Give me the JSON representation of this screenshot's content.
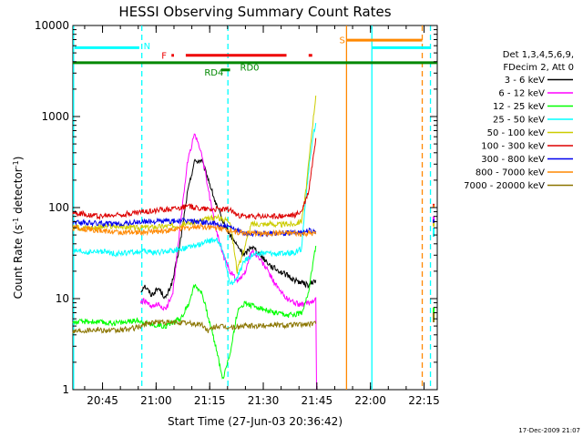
{
  "chart_data": {
    "type": "line",
    "title": "HESSI Observing Summary Count Rates",
    "xlabel": "Start Time (27-Jun-03 20:36:42)",
    "ylabel": "Count Rate (s-1 detector-1)",
    "ylabel_parts": {
      "main": "Count Rate (s",
      "sup1": "-1",
      "mid": " detector",
      "sup2": "-1",
      "end": ")"
    },
    "y_scale": "log",
    "xlim_minutes": [
      0,
      102
    ],
    "ylim": [
      1,
      10000
    ],
    "x_ticks": [
      {
        "m": 8.3,
        "label": "20:45"
      },
      {
        "m": 23.3,
        "label": "21:00"
      },
      {
        "m": 38.3,
        "label": "21:15"
      },
      {
        "m": 53.3,
        "label": "21:30"
      },
      {
        "m": 68.3,
        "label": "21:45"
      },
      {
        "m": 83.3,
        "label": "22:00"
      },
      {
        "m": 98.3,
        "label": "22:15"
      }
    ],
    "y_ticks": [
      {
        "v": 1,
        "label": "1"
      },
      {
        "v": 10,
        "label": "10"
      },
      {
        "v": 100,
        "label": "100"
      },
      {
        "v": 1000,
        "label": "1000"
      },
      {
        "v": 10000,
        "label": "10000"
      }
    ],
    "legend": {
      "header": [
        "Det 1,3,4,5,6,9,",
        "FDecim 2, Att 0"
      ],
      "placement": "right"
    },
    "series": [
      {
        "name": "3 - 6 keV",
        "color": "#000000",
        "points": [
          [
            19,
            12
          ],
          [
            20,
            14
          ],
          [
            22,
            11
          ],
          [
            24,
            13
          ],
          [
            26,
            10
          ],
          [
            28,
            16
          ],
          [
            30,
            40
          ],
          [
            32,
            140
          ],
          [
            34,
            320
          ],
          [
            36,
            330
          ],
          [
            38,
            200
          ],
          [
            40,
            110
          ],
          [
            42,
            70
          ],
          [
            44,
            50
          ],
          [
            46,
            38
          ],
          [
            48,
            30
          ],
          [
            50,
            38
          ],
          [
            52,
            32
          ],
          [
            54,
            26
          ],
          [
            56,
            22
          ],
          [
            58,
            20
          ],
          [
            60,
            18
          ],
          [
            62,
            16
          ],
          [
            64,
            15
          ],
          [
            66,
            14
          ],
          [
            68,
            16
          ]
        ],
        "tail": [
          [
            101,
            48
          ],
          [
            101,
            52
          ]
        ]
      },
      {
        "name": "6 - 12 keV",
        "color": "#ff00ff",
        "points": [
          [
            19,
            9
          ],
          [
            20,
            9.5
          ],
          [
            22,
            8
          ],
          [
            24,
            8.5
          ],
          [
            26,
            7.5
          ],
          [
            28,
            12
          ],
          [
            30,
            60
          ],
          [
            32,
            300
          ],
          [
            34,
            650
          ],
          [
            36,
            400
          ],
          [
            38,
            150
          ],
          [
            40,
            60
          ],
          [
            42,
            30
          ],
          [
            44,
            20
          ],
          [
            46,
            16
          ],
          [
            48,
            18
          ],
          [
            50,
            34
          ],
          [
            52,
            28
          ],
          [
            54,
            22
          ],
          [
            56,
            16
          ],
          [
            58,
            12
          ],
          [
            60,
            10
          ],
          [
            62,
            9
          ],
          [
            64,
            8.5
          ],
          [
            66,
            9
          ],
          [
            68,
            10
          ],
          [
            68.2,
            1
          ]
        ],
        "tail": [
          [
            101,
            70
          ],
          [
            101,
            80
          ]
        ]
      },
      {
        "name": "12 - 25 keV",
        "color": "#00ff00",
        "points": [
          [
            0,
            5.5
          ],
          [
            5,
            5.6
          ],
          [
            10,
            5.4
          ],
          [
            15,
            5.5
          ],
          [
            18,
            5.8
          ],
          [
            22,
            5.2
          ],
          [
            26,
            5.0
          ],
          [
            28,
            5.5
          ],
          [
            30,
            6
          ],
          [
            32,
            8
          ],
          [
            34,
            14
          ],
          [
            36,
            12
          ],
          [
            38,
            6
          ],
          [
            40,
            3
          ],
          [
            42,
            1.3
          ],
          [
            44,
            2.5
          ],
          [
            46,
            7
          ],
          [
            48,
            9
          ],
          [
            52,
            8
          ],
          [
            56,
            7
          ],
          [
            60,
            6.5
          ],
          [
            64,
            7
          ],
          [
            66,
            12
          ],
          [
            68,
            38
          ]
        ],
        "tail": [
          [
            101,
            6
          ],
          [
            101,
            8
          ]
        ]
      },
      {
        "name": "25 - 50 keV",
        "color": "#00ffff",
        "points": [
          [
            0,
            33
          ],
          [
            4,
            32
          ],
          [
            8,
            33
          ],
          [
            12,
            31
          ],
          [
            16,
            32
          ],
          [
            20,
            33
          ],
          [
            24,
            32
          ],
          [
            28,
            34
          ],
          [
            32,
            36
          ],
          [
            36,
            40
          ],
          [
            40,
            45
          ],
          [
            42,
            35
          ],
          [
            44,
            14
          ],
          [
            46,
            17
          ],
          [
            48,
            26
          ],
          [
            50,
            30
          ],
          [
            54,
            32
          ],
          [
            58,
            31
          ],
          [
            62,
            32
          ],
          [
            64,
            35
          ],
          [
            65,
            100
          ],
          [
            66,
            260
          ],
          [
            67,
            550
          ],
          [
            68,
            850
          ]
        ],
        "tail": [
          [
            101,
            48
          ],
          [
            101,
            60
          ]
        ]
      },
      {
        "name": "50 - 100 keV",
        "color": "#cccc00",
        "points": [
          [
            0,
            60
          ],
          [
            6,
            61
          ],
          [
            12,
            62
          ],
          [
            18,
            60
          ],
          [
            24,
            62
          ],
          [
            30,
            64
          ],
          [
            36,
            72
          ],
          [
            40,
            78
          ],
          [
            44,
            72
          ],
          [
            46,
            20
          ],
          [
            48,
            36
          ],
          [
            50,
            66
          ],
          [
            54,
            66
          ],
          [
            58,
            65
          ],
          [
            62,
            66
          ],
          [
            64,
            72
          ],
          [
            65,
            130
          ],
          [
            66,
            300
          ],
          [
            67,
            750
          ],
          [
            68,
            1700
          ]
        ],
        "tail": [
          [
            101,
            62
          ],
          [
            101,
            70
          ]
        ]
      },
      {
        "name": "100 - 300 keV",
        "color": "#dd0000",
        "points": [
          [
            0,
            88
          ],
          [
            4,
            84
          ],
          [
            8,
            80
          ],
          [
            12,
            83
          ],
          [
            16,
            86
          ],
          [
            20,
            90
          ],
          [
            24,
            94
          ],
          [
            28,
            98
          ],
          [
            32,
            103
          ],
          [
            36,
            98
          ],
          [
            40,
            96
          ],
          [
            44,
            95
          ],
          [
            46,
            82
          ],
          [
            48,
            80
          ],
          [
            54,
            80
          ],
          [
            58,
            80
          ],
          [
            62,
            82
          ],
          [
            64,
            90
          ],
          [
            66,
            150
          ],
          [
            68,
            580
          ]
        ],
        "tail": [
          [
            101,
            100
          ],
          [
            101,
            110
          ]
        ]
      },
      {
        "name": "300 - 800 keV",
        "color": "#0000ee",
        "points": [
          [
            0,
            70
          ],
          [
            4,
            68
          ],
          [
            8,
            67
          ],
          [
            12,
            66
          ],
          [
            16,
            68
          ],
          [
            20,
            70
          ],
          [
            24,
            71
          ],
          [
            28,
            71
          ],
          [
            32,
            72
          ],
          [
            36,
            70
          ],
          [
            40,
            66
          ],
          [
            44,
            60
          ],
          [
            46,
            55
          ],
          [
            50,
            52
          ],
          [
            54,
            52
          ],
          [
            58,
            52
          ],
          [
            62,
            53
          ],
          [
            64,
            54
          ],
          [
            66,
            56
          ],
          [
            68,
            55
          ]
        ],
        "tail": [
          [
            101,
            68
          ],
          [
            101,
            74
          ]
        ]
      },
      {
        "name": "800 - 7000 keV",
        "color": "#ff8800",
        "points": [
          [
            0,
            60
          ],
          [
            4,
            58
          ],
          [
            8,
            56
          ],
          [
            12,
            54
          ],
          [
            16,
            53
          ],
          [
            20,
            54
          ],
          [
            24,
            55
          ],
          [
            28,
            57
          ],
          [
            32,
            60
          ],
          [
            36,
            62
          ],
          [
            40,
            60
          ],
          [
            44,
            56
          ],
          [
            46,
            54
          ],
          [
            50,
            52
          ],
          [
            54,
            52
          ],
          [
            58,
            52
          ],
          [
            62,
            52
          ],
          [
            64,
            51
          ],
          [
            66,
            52
          ],
          [
            68,
            51
          ]
        ],
        "tail": [
          [
            101,
            100
          ],
          [
            101,
            106
          ]
        ]
      },
      {
        "name": "7000 - 20000 keV",
        "color": "#8b7500",
        "points": [
          [
            0,
            4.4
          ],
          [
            3,
            4.5
          ],
          [
            6,
            4.6
          ],
          [
            9,
            4.5
          ],
          [
            12,
            4.4
          ],
          [
            15,
            4.6
          ],
          [
            18,
            4.8
          ],
          [
            21,
            5.4
          ],
          [
            24,
            5.6
          ],
          [
            27,
            5.4
          ],
          [
            30,
            5.5
          ],
          [
            33,
            5.3
          ],
          [
            36,
            5.2
          ],
          [
            38,
            4.4
          ],
          [
            40,
            5.0
          ],
          [
            42,
            4.9
          ],
          [
            44,
            4.8
          ],
          [
            48,
            5.0
          ],
          [
            52,
            5.0
          ],
          [
            56,
            5.2
          ],
          [
            60,
            5.1
          ],
          [
            64,
            5.2
          ],
          [
            68,
            5.3
          ]
        ],
        "tail": [
          [
            101,
            5.5
          ],
          [
            101,
            7
          ]
        ]
      }
    ],
    "vertical_lines": [
      {
        "m": 0.2,
        "color": "#00ffff",
        "style": "solid"
      },
      {
        "m": 19.3,
        "color": "#00ffff",
        "style": "dashed"
      },
      {
        "m": 43.4,
        "color": "#00ffff",
        "style": "dashed"
      },
      {
        "m": 76.6,
        "color": "#ff8800",
        "style": "solid"
      },
      {
        "m": 83.7,
        "color": "#00ffff",
        "style": "solid"
      },
      {
        "m": 97.8,
        "color": "#ff8800",
        "style": "dashed"
      },
      {
        "m": 100.1,
        "color": "#00ffff",
        "style": "dashed"
      }
    ],
    "flags": [
      {
        "label": "N",
        "color": "#00ffff",
        "segments": [
          [
            0.5,
            18.6
          ]
        ],
        "y": 5700,
        "label_at": 19.8,
        "label_y": 6000
      },
      {
        "label": "N",
        "color": "#00ffff",
        "segments": [
          [
            83.8,
            100
          ]
        ],
        "y": 5700,
        "label_at": null
      },
      {
        "label": "F",
        "color": "#ee0000",
        "segments": [
          [
            27.6,
            28.3
          ],
          [
            31.6,
            59.8
          ],
          [
            66,
            67
          ]
        ],
        "y": 4700,
        "label_at": 24.8,
        "label_y": 4750
      },
      {
        "label": "S",
        "color": "#ff8800",
        "segments": [
          [
            76.6,
            97.8
          ]
        ],
        "y": 6900,
        "label_at": 74.6,
        "label_y": 7000
      },
      {
        "label": "RD0",
        "color": "#008800",
        "segments": [
          [
            0,
            102
          ]
        ],
        "y": 3900,
        "label_at": 46.8,
        "label_y": 3500
      },
      {
        "label": "RD4",
        "color": "#008800",
        "segments": [
          [
            41.5,
            44
          ]
        ],
        "y": 3250,
        "label_at": 36.8,
        "label_y": 3100
      }
    ],
    "grid": false
  },
  "footer": {
    "timestamp": "17-Dec-2009 21:07"
  }
}
